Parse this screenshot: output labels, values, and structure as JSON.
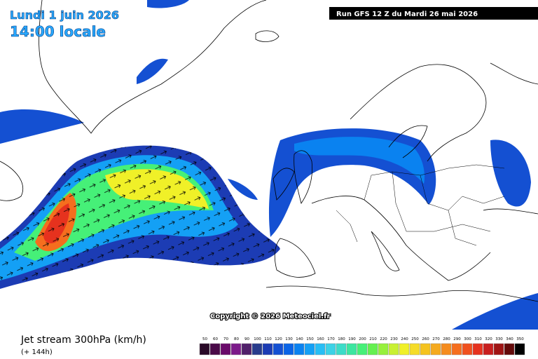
{
  "header": {
    "date": "Lundi 1 juin 2026",
    "time": "14:00 locale",
    "run": "Run GFS 12 Z du Mardi 26 mai 2026"
  },
  "copyright": "Copyright © 2026 Meteociel.fr",
  "footer": {
    "title": "Jet stream 300hPa (km/h)",
    "lead": "(+ 144h)"
  },
  "scale": {
    "labels": [
      50,
      60,
      70,
      80,
      90,
      100,
      110,
      120,
      130,
      140,
      150,
      160,
      170,
      180,
      190,
      200,
      210,
      220,
      230,
      240,
      250,
      260,
      270,
      280,
      290,
      300,
      310,
      320,
      330,
      340,
      350
    ],
    "colors": [
      "#2a0a28",
      "#4a0a48",
      "#6a0a6a",
      "#7c1a8a",
      "#50206a",
      "#283c8c",
      "#1c3cb4",
      "#1450d2",
      "#0a64e6",
      "#0a82f0",
      "#14a0f5",
      "#28bef5",
      "#3cd2e6",
      "#3cdcc8",
      "#3ce6a0",
      "#46f078",
      "#64f050",
      "#96f03c",
      "#c8f032",
      "#f0f028",
      "#f5dc28",
      "#f5c31e",
      "#f5aa1e",
      "#f58c1e",
      "#f56e1e",
      "#f0501e",
      "#e6321e",
      "#c81e1e",
      "#a01414",
      "#640a0a",
      "#000000"
    ]
  }
}
